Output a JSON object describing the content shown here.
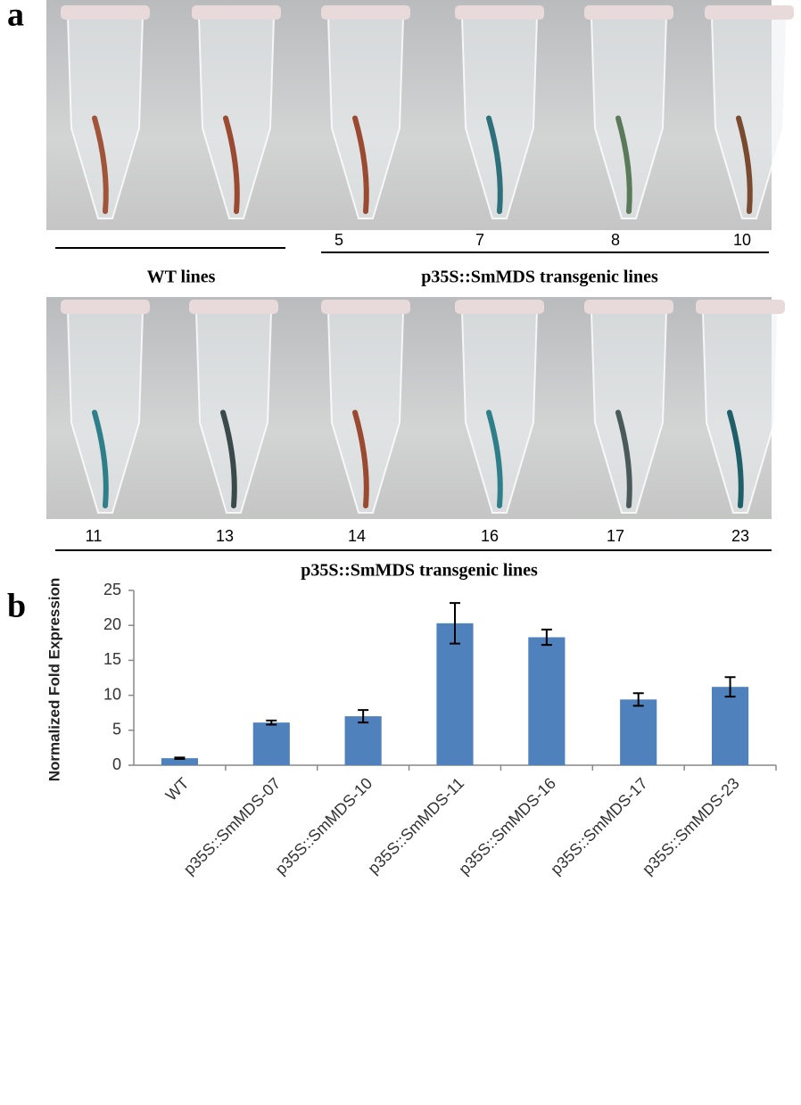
{
  "panel_a": {
    "label": "a",
    "row1": {
      "numbers": [
        "5",
        "7",
        "8",
        "10"
      ],
      "wt_caption": "WT  lines",
      "caption": "p35S::SmMDS   transgenic lines"
    },
    "row2": {
      "numbers": [
        "11",
        "13",
        "14",
        "16",
        "17",
        "23"
      ],
      "caption": "p35S::SmMDS   transgenic lines"
    }
  },
  "panel_b": {
    "label": "b"
  },
  "chart_data": {
    "type": "bar",
    "y_label": "Normalized Fold Expression",
    "categories": [
      "WT",
      "p35S::SmMDS-07",
      "p35S::SmMDS-10",
      "p35S::SmMDS-11",
      "p35S::SmMDS-16",
      "p35S::SmMDS-17",
      "p35S::SmMDS-23"
    ],
    "values": [
      1.0,
      6.1,
      7.0,
      20.3,
      18.3,
      9.4,
      11.2
    ],
    "errors": [
      0.1,
      0.3,
      0.9,
      2.9,
      1.1,
      0.9,
      1.4
    ],
    "color": "#4f81bd",
    "ylim": [
      0,
      25
    ],
    "yticks": [
      0,
      5,
      10,
      15,
      20,
      25
    ],
    "grid": false
  }
}
